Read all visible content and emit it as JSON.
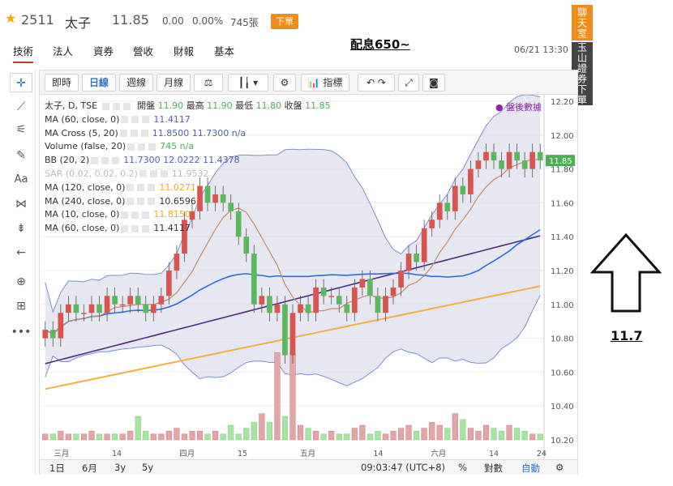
{
  "header": {
    "code": "2511",
    "name": "太子",
    "price": "11.85",
    "change": "0.00",
    "change_pct": "0.00%",
    "volume": "745張",
    "badge": "下單"
  },
  "tabs": [
    "技術",
    "法人",
    "資券",
    "營收",
    "財報",
    "基本"
  ],
  "annotation_top": "配息650~",
  "datetime": "06/21 13:30",
  "side_buttons": {
    "chat": "聊天室",
    "broker": "玉山證券下單"
  },
  "chart_toolbar": {
    "buttons": [
      "即時",
      "日線",
      "週線",
      "月線"
    ],
    "indicators_label": "指標"
  },
  "legend": {
    "main": "太子, D, TSE",
    "open_label": "開盤",
    "open": "11.90",
    "high_label": "最高",
    "high": "11.90",
    "low_label": "最低",
    "low": "11.80",
    "close_label": "收盤",
    "close": "11.85",
    "rows": [
      {
        "name": "MA (60, close, 0)",
        "vals": "11.4117"
      },
      {
        "name": "MA Cross (5, 20)",
        "vals": "11.8500 11.7300 n/a"
      },
      {
        "name": "Volume (false, 20)",
        "vals": "745 n/a"
      },
      {
        "name": "BB (20, 2)",
        "vals": "11.7300 12.0222 11.4378"
      },
      {
        "name": "SAR (0.02, 0.02, 0.2)",
        "vals": "11.9532"
      },
      {
        "name": "MA (120, close, 0)",
        "vals": "11.0271"
      },
      {
        "name": "MA (240, close, 0)",
        "vals": "10.6596"
      },
      {
        "name": "MA (10, close, 0)",
        "vals": "11.8150"
      },
      {
        "name": "MA (60, close, 0)",
        "vals": "11.4117"
      }
    ],
    "review": "盤後數據"
  },
  "bottom": {
    "ranges": [
      "1日",
      "6月",
      "3y",
      "5y"
    ],
    "time": "09:03:47 (UTC+8)",
    "pct": "%",
    "log": "對數",
    "auto": "自動"
  },
  "annotation_right": "11.7",
  "colors": {
    "up": "#e15759",
    "down": "#4caf50",
    "accent": "#f08c1e",
    "bb_fill": "#dfe0ef"
  },
  "chart_data": {
    "type": "candlestick",
    "price_ticks": [
      "12.20",
      "12.00",
      "11.80",
      "11.60",
      "11.40",
      "11.20",
      "11.00",
      "10.80",
      "10.60",
      "10.40",
      "10.20"
    ],
    "ylim": [
      10.2,
      12.2
    ],
    "x_labels": [
      "三月",
      "14",
      "四月",
      "15",
      "五月",
      "14",
      "六月",
      "14",
      "24"
    ],
    "last_price_label": "11.85",
    "close": [
      10.85,
      10.8,
      10.95,
      11.0,
      10.95,
      10.95,
      11.0,
      10.95,
      11.05,
      11.0,
      11.0,
      11.05,
      11.0,
      10.95,
      11.0,
      11.05,
      11.2,
      11.3,
      11.5,
      11.55,
      11.7,
      11.6,
      11.65,
      11.6,
      11.55,
      11.4,
      11.3,
      11.0,
      11.05,
      10.95,
      11.0,
      10.7,
      10.95,
      11.0,
      10.95,
      11.1,
      11.05,
      11.05,
      11.0,
      10.95,
      11.1,
      11.15,
      11.05,
      10.95,
      11.05,
      11.1,
      11.2,
      11.3,
      11.25,
      11.45,
      11.5,
      11.6,
      11.55,
      11.7,
      11.65,
      11.8,
      11.85,
      11.9,
      11.85,
      11.8,
      11.9,
      11.85,
      11.8,
      11.9,
      11.85
    ],
    "volume": [
      2,
      2,
      3,
      2,
      2,
      2,
      3,
      2,
      2,
      2,
      2,
      3,
      8,
      3,
      2,
      2,
      3,
      4,
      2,
      3,
      3,
      2,
      3,
      2,
      5,
      2,
      4,
      6,
      9,
      6,
      30,
      8,
      30,
      5,
      4,
      3,
      2,
      3,
      2,
      2,
      4,
      5,
      2,
      3,
      2,
      3,
      4,
      5,
      3,
      4,
      6,
      5,
      4,
      9,
      7,
      4,
      3,
      5,
      4,
      3,
      5,
      4,
      3,
      2,
      2
    ]
  }
}
